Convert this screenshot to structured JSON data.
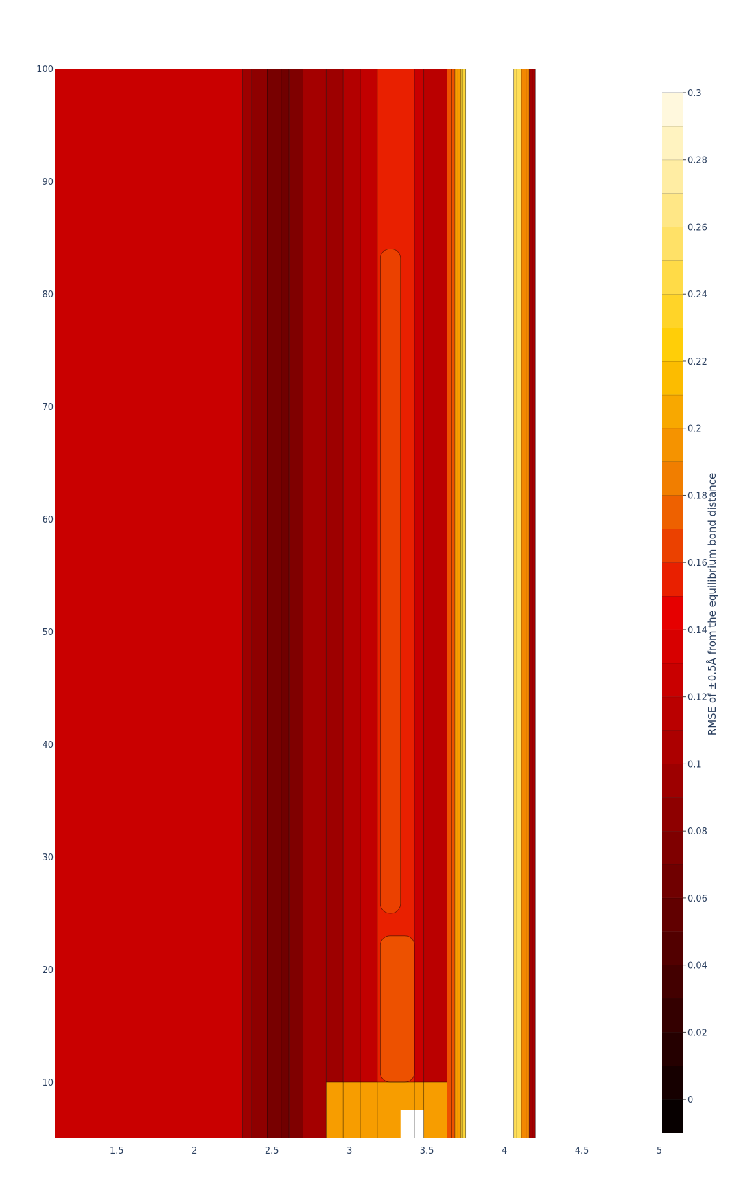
{
  "chart_data": {
    "type": "contour",
    "title": "",
    "xlabel": "",
    "ylabel": "",
    "xlim": [
      1.1,
      5.0
    ],
    "ylim": [
      5,
      100
    ],
    "x_ticks": [
      1.5,
      2,
      2.5,
      3,
      3.5,
      4,
      4.5,
      5
    ],
    "x_tick_labels": [
      "1.5",
      "2",
      "2.5",
      "3",
      "3.5",
      "4",
      "4.5",
      "5"
    ],
    "y_ticks": [
      10,
      20,
      30,
      40,
      50,
      60,
      70,
      80,
      90,
      100
    ],
    "y_tick_labels": [
      "10",
      "20",
      "30",
      "40",
      "50",
      "60",
      "70",
      "80",
      "90",
      "100"
    ],
    "colorbar": {
      "title": "RMSE of ±0.5Å from the equilibrium bond distance",
      "min": -0.01,
      "max": 0.3,
      "step": 0.01,
      "ticks": [
        0,
        0.02,
        0.04,
        0.06,
        0.08,
        0.1,
        0.12,
        0.14,
        0.16,
        0.18,
        0.2,
        0.22,
        0.24,
        0.26,
        0.28,
        0.3
      ],
      "tick_labels": [
        "0",
        "0.02",
        "0.04",
        "0.06",
        "0.08",
        "0.1",
        "0.12",
        "0.14",
        "0.16",
        "0.18",
        "0.2",
        "0.22",
        "0.24",
        "0.26",
        "0.28",
        "0.3"
      ],
      "colorscale": [
        [
          0,
          "#000000"
        ],
        [
          0.33,
          "#990000"
        ],
        [
          0.5,
          "#e60000"
        ],
        [
          0.62,
          "#f07800"
        ],
        [
          0.75,
          "#ffcc00"
        ],
        [
          0.88,
          "#ffe680"
        ],
        [
          1,
          "#fffbeb"
        ]
      ]
    },
    "bands": [
      {
        "x0": 1.1,
        "x1": 2.31,
        "value": 0.125
      },
      {
        "x0": 2.31,
        "x1": 2.37,
        "value": 0.095
      },
      {
        "x0": 2.37,
        "x1": 2.47,
        "value": 0.085
      },
      {
        "x0": 2.47,
        "x1": 2.56,
        "value": 0.07
      },
      {
        "x0": 2.56,
        "x1": 2.61,
        "value": 0.065
      },
      {
        "x0": 2.61,
        "x1": 2.7,
        "value": 0.075
      },
      {
        "x0": 2.7,
        "x1": 2.85,
        "value": 0.1
      },
      {
        "x0": 2.85,
        "x1": 2.96,
        "value": 0.095
      },
      {
        "x0": 2.96,
        "x1": 3.07,
        "value": 0.11
      },
      {
        "x0": 3.07,
        "x1": 3.18,
        "value": 0.12
      },
      {
        "x0": 3.18,
        "x1": 3.42,
        "value": 0.155
      },
      {
        "x0": 3.42,
        "x1": 3.48,
        "value": 0.125
      },
      {
        "x0": 3.48,
        "x1": 3.63,
        "value": 0.115
      },
      {
        "x0": 3.63,
        "x1": 3.68,
        "value": 0.17
      },
      {
        "x0": 3.68,
        "x1": 3.72,
        "value": 0.2
      },
      {
        "x0": 3.72,
        "x1": 3.75,
        "value": 0.24
      },
      {
        "x0": 4.06,
        "x1": 4.11,
        "value": 0.25
      },
      {
        "x0": 4.11,
        "x1": 4.16,
        "value": 0.19
      },
      {
        "x0": 4.16,
        "x1": 4.2,
        "value": 0.1
      }
    ],
    "islands": [
      {
        "x0": 3.2,
        "x1": 3.33,
        "y0": 25,
        "y1": 84,
        "value": 0.165
      },
      {
        "x0": 3.2,
        "x1": 3.42,
        "y0": 10,
        "y1": 23,
        "value": 0.17
      }
    ],
    "contour_lines_x": [
      2.31,
      2.37,
      2.47,
      2.56,
      2.61,
      2.7,
      2.85,
      2.96,
      3.07,
      3.18,
      3.42,
      3.48,
      3.63,
      3.66,
      3.68,
      3.7,
      3.72,
      3.73,
      3.74,
      3.75,
      4.06,
      4.08,
      4.11,
      4.14,
      4.16,
      4.18,
      4.2
    ]
  }
}
